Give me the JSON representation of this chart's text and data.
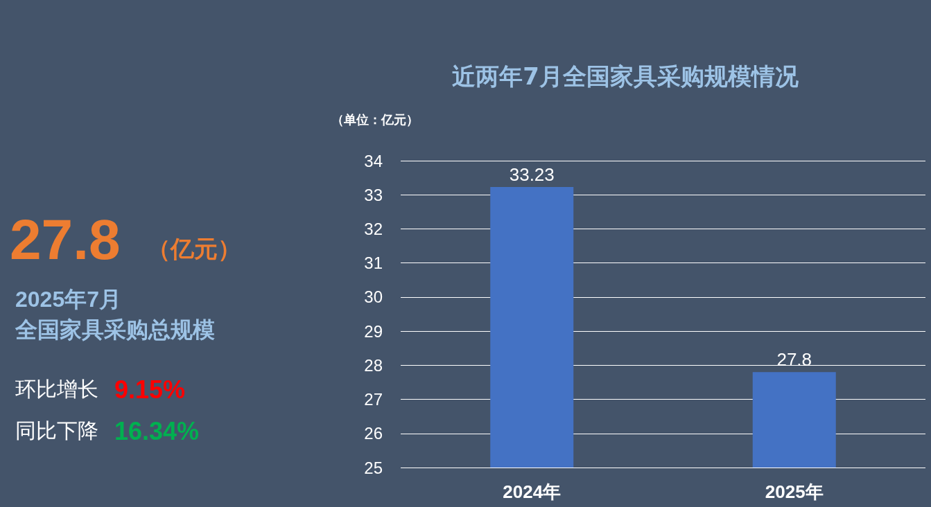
{
  "chart_data": {
    "type": "bar",
    "title": "近两年7月全国家具采购规模情况",
    "ylabel": "（单位：亿元）",
    "categories": [
      "2024年",
      "2025年"
    ],
    "values": [
      33.23,
      27.8
    ],
    "color": "#4472c4",
    "ylim": [
      25,
      34
    ],
    "yticks": [
      25,
      26,
      27,
      28,
      29,
      30,
      31,
      32,
      33,
      34
    ],
    "grid": "y",
    "data_labels": true,
    "annotations": [
      "27.8",
      "（亿元）",
      "2025年7月",
      "全国家具采购总规模",
      "环比增长",
      "9.15%",
      "同比下降",
      "16.34%"
    ]
  }
}
